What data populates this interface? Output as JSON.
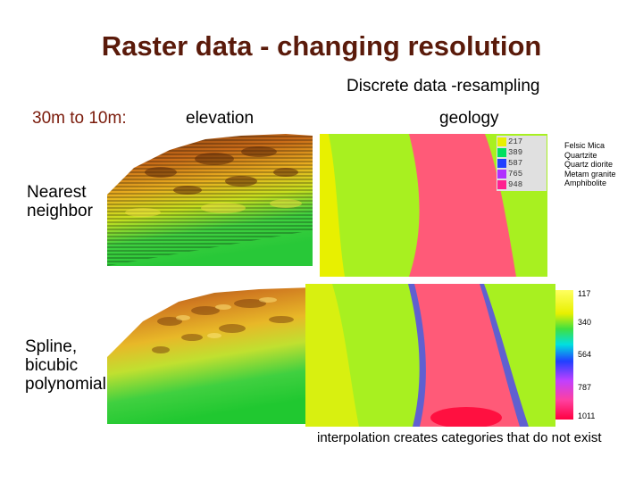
{
  "header": {
    "title": "Raster data  - changing resolution",
    "subtitle": "Discrete data -resampling"
  },
  "resolution_label": "30m to 10m:",
  "columns": {
    "elevation": "elevation",
    "geology": "geology"
  },
  "rows": {
    "nearest": "Nearest neighbor",
    "spline": "Spline, bicubic polynomial"
  },
  "legend_top": {
    "codes": [
      "217",
      "389",
      "587",
      "765",
      "948"
    ],
    "items": [
      "Felsic Mica",
      "Quartzite",
      "Quartz diorite",
      "Metam granite",
      "Amphibolite"
    ],
    "colors": [
      "#e8f000",
      "#00e060",
      "#2040ff",
      "#b030ff",
      "#ff2090"
    ]
  },
  "colorbar": {
    "ticks": [
      "117",
      "340",
      "564",
      "787",
      "1011"
    ]
  },
  "caption": "interpolation creates categories that do not exist"
}
